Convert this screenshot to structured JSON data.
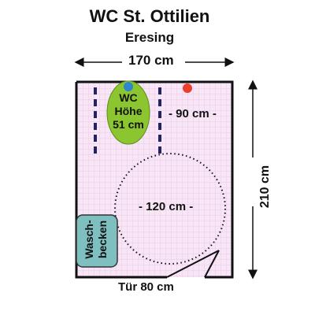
{
  "title": "WC St. Ottilien",
  "subtitle": "Eresing",
  "dimensions": {
    "width_label": "170 cm",
    "height_label": "210 cm"
  },
  "toilet": {
    "label": "WC Höhe 51 cm",
    "distance_label": "- 90 cm -"
  },
  "turning_circle_label": "- 120 cm -",
  "sink_label": "Wasch-becken",
  "door_label": "Tür 80 cm",
  "colors": {
    "floor": "#f8e6f6",
    "grid": "#e9c9e6",
    "wall": "#111111",
    "toilet": "#8bc630",
    "sink": "#7fbfbf",
    "blue_dot": "#2f86c8",
    "red_dot": "#e8402a",
    "grab_bar": "#22226a"
  },
  "icons": [
    "blue-dot-icon",
    "red-dot-icon",
    "arrow-icon"
  ]
}
